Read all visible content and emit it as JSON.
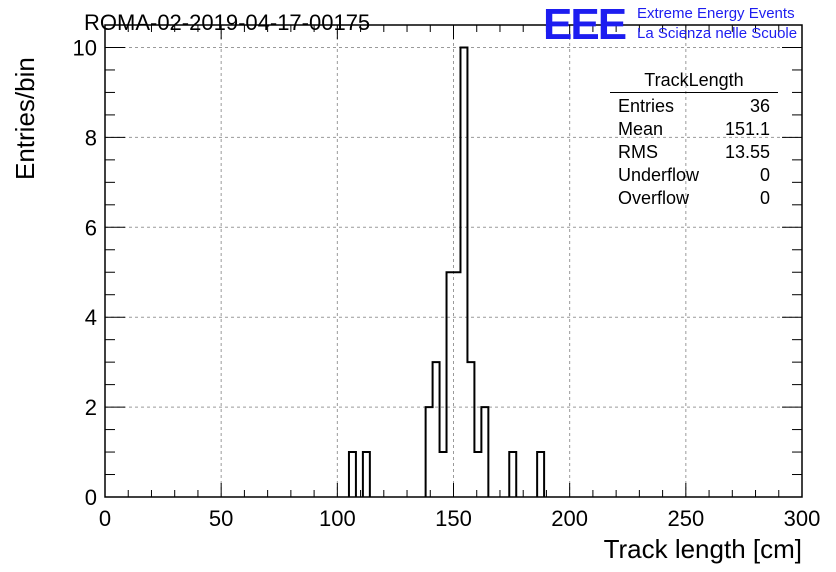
{
  "header": {
    "run_title": "ROMA-02-2019-04-17-00175",
    "logo": "EEE",
    "logo_line1": "Extreme Energy Events",
    "logo_line2": "La Scienza nelle Scuole"
  },
  "stats_box": {
    "title": "TrackLength",
    "rows": [
      {
        "label": "Entries",
        "value": "36"
      },
      {
        "label": "Mean",
        "value": "151.1"
      },
      {
        "label": "RMS",
        "value": "13.55"
      },
      {
        "label": "Underflow",
        "value": "0"
      },
      {
        "label": "Overflow",
        "value": "0"
      }
    ]
  },
  "chart_data": {
    "type": "bar",
    "style": "step-histogram",
    "xlabel": "Track length [cm]",
    "ylabel": "Entries/bin",
    "xlim": [
      0,
      300
    ],
    "ylim": [
      0,
      10.5
    ],
    "bin_width": 3,
    "grid": true,
    "xticks": [
      0,
      50,
      100,
      150,
      200,
      250,
      300
    ],
    "yticks": [
      0,
      2,
      4,
      6,
      8,
      10
    ],
    "bins": [
      {
        "x": 105,
        "count": 1
      },
      {
        "x": 111,
        "count": 1
      },
      {
        "x": 138,
        "count": 2
      },
      {
        "x": 141,
        "count": 3
      },
      {
        "x": 144,
        "count": 1
      },
      {
        "x": 147,
        "count": 5
      },
      {
        "x": 150,
        "count": 5
      },
      {
        "x": 153,
        "count": 10
      },
      {
        "x": 156,
        "count": 3
      },
      {
        "x": 159,
        "count": 1
      },
      {
        "x": 162,
        "count": 2
      },
      {
        "x": 174,
        "count": 1
      },
      {
        "x": 186,
        "count": 1
      }
    ]
  }
}
